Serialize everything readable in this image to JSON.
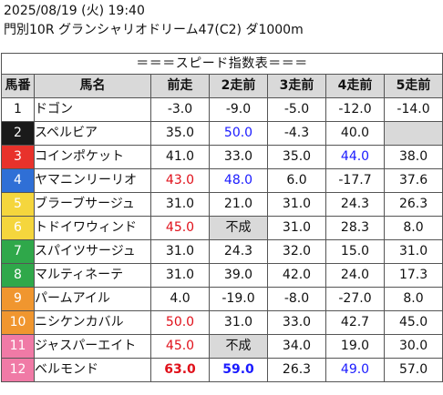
{
  "header": {
    "datetime": "2025/08/19 (火) 19:40",
    "race": "門別10R グランシャリオドリーム47(C2) ダ1000m"
  },
  "table": {
    "caption": "＝＝＝スピード指数表＝＝＝",
    "columns": [
      "馬番",
      "馬名",
      "前走",
      "2走前",
      "3走前",
      "4走前",
      "5走前"
    ],
    "rows": [
      {
        "num": "1",
        "name": "ドゴン",
        "values": [
          "-3.0",
          "-9.0",
          "-5.0",
          "-12.0",
          "-14.0"
        ]
      },
      {
        "num": "2",
        "name": "スペルビア",
        "values": [
          "35.0",
          "50.0",
          "-4.3",
          "40.0",
          ""
        ]
      },
      {
        "num": "3",
        "name": "コインポケット",
        "values": [
          "41.0",
          "33.0",
          "35.0",
          "44.0",
          "38.0"
        ]
      },
      {
        "num": "4",
        "name": "ヤマニンリーリオ",
        "values": [
          "43.0",
          "48.0",
          "6.0",
          "-17.7",
          "37.6"
        ]
      },
      {
        "num": "5",
        "name": "ブラーブサージュ",
        "values": [
          "31.0",
          "21.0",
          "31.0",
          "24.3",
          "26.3"
        ]
      },
      {
        "num": "6",
        "name": "トドイワウィンド",
        "values": [
          "45.0",
          "不成",
          "31.0",
          "28.3",
          "8.0"
        ]
      },
      {
        "num": "7",
        "name": "スパイツサージュ",
        "values": [
          "31.0",
          "24.3",
          "32.0",
          "15.0",
          "31.0"
        ]
      },
      {
        "num": "8",
        "name": "マルティネーテ",
        "values": [
          "31.0",
          "39.0",
          "42.0",
          "24.0",
          "17.3"
        ]
      },
      {
        "num": "9",
        "name": "パームアイル",
        "values": [
          "4.0",
          "-19.0",
          "-8.0",
          "-27.0",
          "8.0"
        ]
      },
      {
        "num": "10",
        "name": "ニシケンカバル",
        "values": [
          "50.0",
          "31.0",
          "33.0",
          "42.7",
          "45.0"
        ]
      },
      {
        "num": "11",
        "name": "ジャスパーエイト",
        "values": [
          "45.0",
          "不成",
          "34.0",
          "19.0",
          "30.0"
        ]
      },
      {
        "num": "12",
        "name": "ベルモンド",
        "values": [
          "63.0",
          "59.0",
          "26.3",
          "49.0",
          "57.0"
        ]
      }
    ]
  },
  "colors": {
    "frame_1": {
      "bg": "#ffffff",
      "fg": "#111111"
    },
    "frame_2": {
      "bg": "#1a1a1a",
      "fg": "#ffffff"
    },
    "frame_3": {
      "bg": "#e8322b",
      "fg": "#ffffff"
    },
    "frame_4": {
      "bg": "#2f6fd6",
      "fg": "#ffffff"
    },
    "frame_5": {
      "bg": "#f5d63d",
      "fg": "#ffffff"
    },
    "frame_6": {
      "bg": "#f5d63d",
      "fg": "#ffffff"
    },
    "frame_7": {
      "bg": "#2fa84a",
      "fg": "#ffffff"
    },
    "frame_8": {
      "bg": "#2fa84a",
      "fg": "#ffffff"
    },
    "frame_9": {
      "bg": "#f0962f",
      "fg": "#ffffff"
    },
    "frame_10": {
      "bg": "#f0962f",
      "fg": "#ffffff"
    },
    "frame_11": {
      "bg": "#f07aa6",
      "fg": "#ffffff"
    },
    "frame_12": {
      "bg": "#f07aa6",
      "fg": "#ffffff"
    },
    "highlight_red": "#e0101a",
    "highlight_blue": "#1a1aff",
    "empty_cell": "#d9d9d9"
  },
  "styles": {
    "r1": [
      "",
      "",
      "",
      "",
      ""
    ],
    "r2": [
      "",
      "blue",
      "",
      "",
      "grey"
    ],
    "r3": [
      "",
      "",
      "",
      "blue",
      ""
    ],
    "r4": [
      "red",
      "blue",
      "",
      "",
      ""
    ],
    "r5": [
      "",
      "",
      "",
      "",
      ""
    ],
    "r6": [
      "red",
      "grey",
      "",
      "",
      ""
    ],
    "r7": [
      "",
      "",
      "",
      "",
      ""
    ],
    "r8": [
      "",
      "",
      "",
      "",
      ""
    ],
    "r9": [
      "",
      "",
      "",
      "",
      ""
    ],
    "r10": [
      "red",
      "",
      "",
      "",
      ""
    ],
    "r11": [
      "red",
      "grey",
      "",
      "",
      ""
    ],
    "r12": [
      "red bold",
      "blue bold",
      "",
      "blue",
      ""
    ]
  }
}
